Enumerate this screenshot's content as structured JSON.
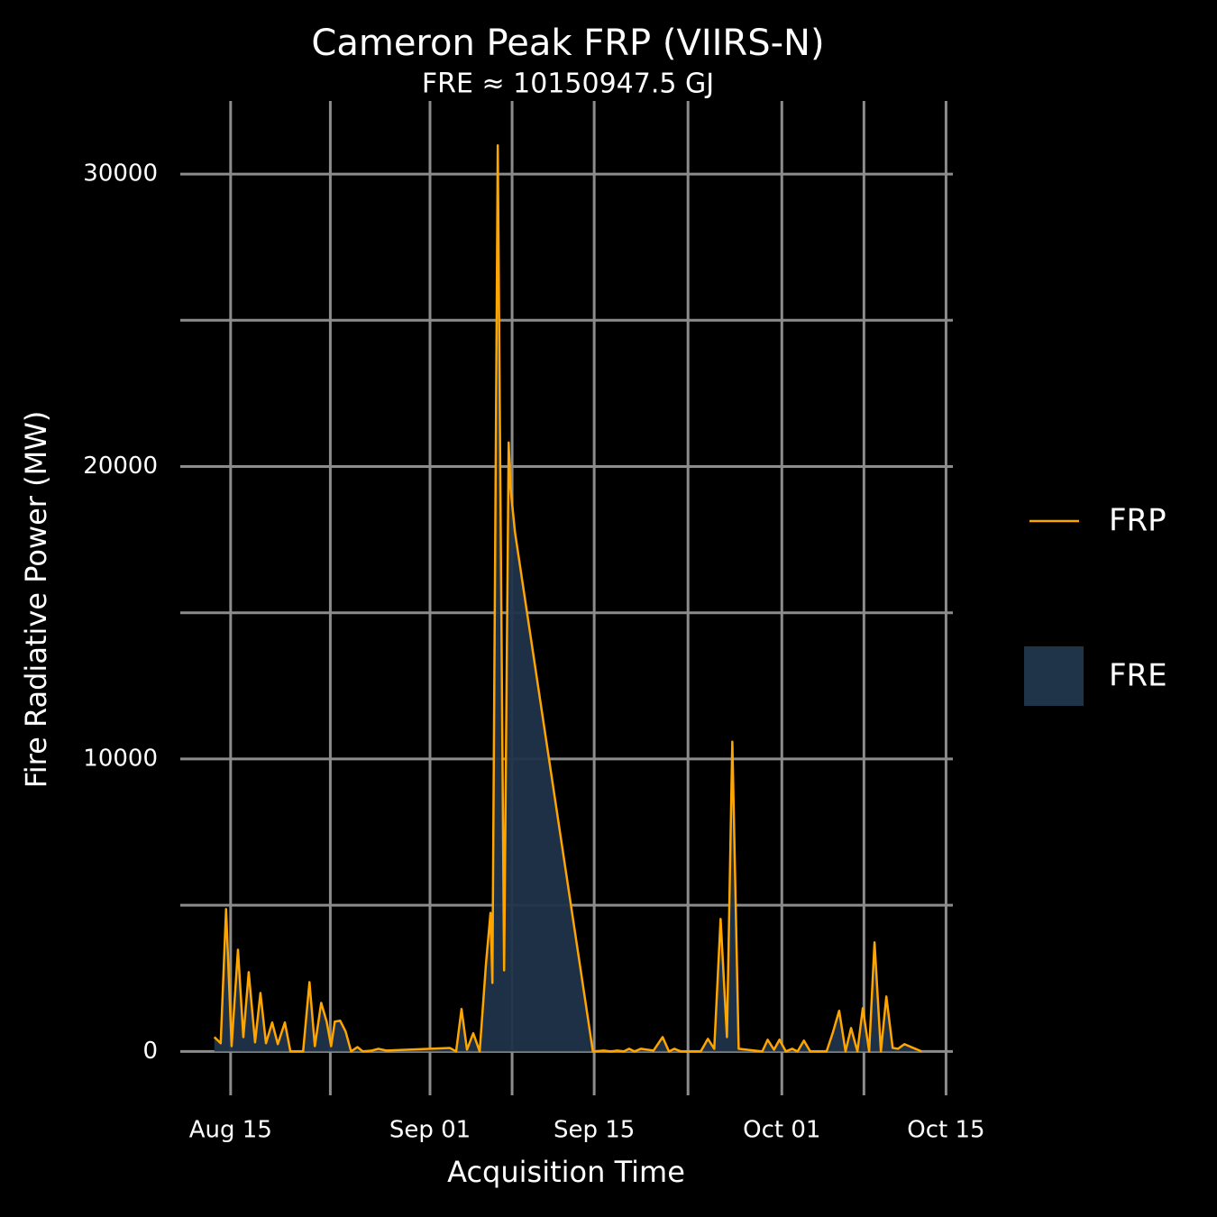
{
  "chart_data": {
    "type": "line",
    "title": "Cameron Peak FRP (VIIRS-N)",
    "subtitle": "FRE ≈ 10150947.5 GJ",
    "x_label": "Acquisition Time",
    "y_label": "Fire Radiative Power (MW)",
    "x": [
      "08-13 14:40",
      "08-14 03:40",
      "08-14 14:40",
      "08-15 02:00",
      "08-15 15:00",
      "08-16 02:00",
      "08-16 13:00",
      "08-17 02:00",
      "08-17 13:00",
      "08-18 00:20",
      "08-18 13:00",
      "08-19 00:30",
      "08-19 15:00",
      "08-20 02:20",
      "08-21 04:20",
      "08-21 17:20",
      "08-22 04:20",
      "08-22 17:20",
      "08-23 04:30",
      "08-23 13:40",
      "08-23 21:10",
      "08-24 08:10",
      "08-24 19:20",
      "08-25 06:30",
      "08-25 19:30",
      "08-26 06:30",
      "08-27 01:10",
      "08-27 14:10",
      "08-28 06:40",
      "09-02 16:30",
      "09-03 05:30",
      "09-03 16:30",
      "09-04 03:40",
      "09-04 16:30",
      "09-05 05:40",
      "09-05 18:40",
      "09-06 03:50",
      "09-06 07:40",
      "09-06 18:40",
      "09-07 07:40",
      "09-07 17:00",
      "09-07 20:40",
      "09-08 06:00",
      "09-14 21:20",
      "09-15 19:30",
      "09-16 10:20",
      "09-16 23:20",
      "09-17 12:20",
      "09-17 23:30",
      "09-18 10:30",
      "09-18 23:30",
      "09-20 01:30",
      "09-20 20:00",
      "09-21 09:00",
      "09-21 20:10",
      "09-22 09:10",
      "09-24 02:00",
      "09-24 16:40",
      "09-25 05:40",
      "09-25 18:40",
      "09-26 07:40",
      "09-26 18:40",
      "09-27 07:40",
      "09-29 08:00",
      "09-29 19:00",
      "09-30 08:00",
      "09-30 19:10",
      "10-01 08:10",
      "10-01 21:10",
      "10-02 08:10",
      "10-02 21:10",
      "10-03 10:10",
      "10-04 19:30",
      "10-05 08:30",
      "10-05 21:20",
      "10-06 10:20",
      "10-06 21:40",
      "10-07 10:40",
      "10-07 21:40",
      "10-08 10:40",
      "10-08 21:40",
      "10-09 10:40",
      "10-09 21:50",
      "10-10 10:50",
      "10-10 21:50",
      "10-11 10:50",
      "10-12 22:00"
    ],
    "series": [
      {
        "name": "FRP",
        "color": "#ffa500",
        "values": [
          490,
          280,
          4870,
          180,
          3480,
          490,
          2710,
          310,
          2000,
          280,
          990,
          250,
          990,
          0,
          0,
          2370,
          180,
          1660,
          1020,
          180,
          1020,
          1050,
          680,
          0,
          150,
          0,
          30,
          90,
          30,
          120,
          0,
          1450,
          60,
          620,
          0,
          3020,
          4740,
          2340,
          30980,
          2770,
          20820,
          19280,
          17740,
          0,
          30,
          0,
          30,
          0,
          90,
          0,
          90,
          30,
          490,
          0,
          90,
          0,
          0,
          430,
          90,
          4530,
          490,
          10590,
          90,
          0,
          400,
          60,
          400,
          0,
          90,
          0,
          370,
          0,
          0,
          650,
          1390,
          0,
          800,
          0,
          1480,
          0,
          3730,
          0,
          1880,
          120,
          90,
          250,
          0
        ]
      }
    ],
    "area": {
      "name": "FRE",
      "color": "#1f3349"
    },
    "xlim": [
      "08-10 17:00",
      "10-15 14:00"
    ],
    "xticks": [
      {
        "value": "08-15 00:00",
        "label": "Aug 15"
      },
      {
        "value": "09-01 00:00",
        "label": "Sep 01"
      },
      {
        "value": "09-15 00:00",
        "label": "Sep 15"
      },
      {
        "value": "10-01 00:00",
        "label": "Oct 01"
      },
      {
        "value": "10-15 00:00",
        "label": "Oct 15"
      }
    ],
    "ylim": [
      -1500,
      32500
    ],
    "yticks": [
      0,
      10000,
      20000,
      30000
    ],
    "grid": true,
    "grid_color": "#8c8c8c",
    "legend": "right"
  }
}
